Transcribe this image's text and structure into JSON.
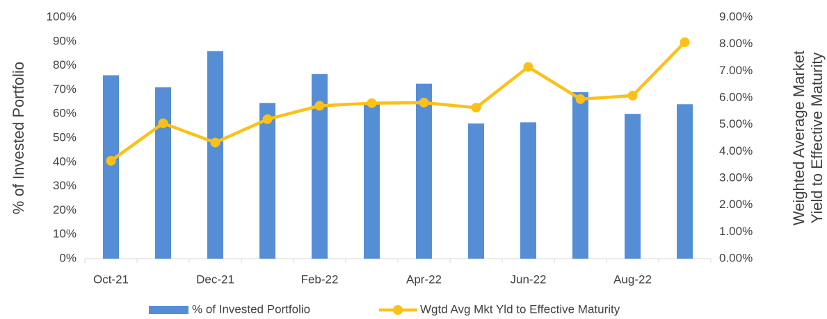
{
  "chart_data": {
    "type": "bar_line",
    "categories": [
      "Oct-21",
      null,
      "Dec-21",
      null,
      "Feb-22",
      null,
      "Apr-22",
      null,
      "Jun-22",
      null,
      "Aug-22",
      null
    ],
    "series": [
      {
        "name": "% of Invested Portfolio",
        "type": "bar",
        "color": "#558ed5",
        "values": [
          76,
          71,
          86,
          64.5,
          76.5,
          64,
          72.5,
          56,
          56.5,
          69,
          60,
          64
        ]
      },
      {
        "name": "Wgtd Avg Mkt Yld to Effective Maturity",
        "type": "line",
        "axis": "y2",
        "color": "#fbc117",
        "values": [
          3.65,
          5.05,
          4.33,
          5.2,
          5.7,
          5.8,
          5.82,
          5.63,
          7.15,
          5.95,
          6.08,
          8.07
        ]
      }
    ],
    "ylabel": "% of Invested Portfolio",
    "y2label": [
      "Weighted Average Market",
      "Yield to Effective Maturity"
    ],
    "ylim": [
      0,
      100
    ],
    "yticks": [
      {
        "value": 0,
        "label": "0%"
      },
      {
        "value": 10,
        "label": "10%"
      },
      {
        "value": 20,
        "label": "20%"
      },
      {
        "value": 30,
        "label": "30%"
      },
      {
        "value": 40,
        "label": "40%"
      },
      {
        "value": 50,
        "label": "50%"
      },
      {
        "value": 60,
        "label": "60%"
      },
      {
        "value": 70,
        "label": "70%"
      },
      {
        "value": 80,
        "label": "80%"
      },
      {
        "value": 90,
        "label": "90%"
      },
      {
        "value": 100,
        "label": "100%"
      }
    ],
    "y2lim": [
      0,
      9
    ],
    "y2ticks": [
      {
        "value": 0,
        "label": "0.00%"
      },
      {
        "value": 1,
        "label": "1.00%"
      },
      {
        "value": 2,
        "label": "2.00%"
      },
      {
        "value": 3,
        "label": "3.00%"
      },
      {
        "value": 4,
        "label": "4.00%"
      },
      {
        "value": 5,
        "label": "5.00%"
      },
      {
        "value": 6,
        "label": "6.00%"
      },
      {
        "value": 7,
        "label": "7.00%"
      },
      {
        "value": 8,
        "label": "8.00%"
      },
      {
        "value": 9,
        "label": "9.00%"
      }
    ],
    "grid": false,
    "legend": "bottom"
  }
}
